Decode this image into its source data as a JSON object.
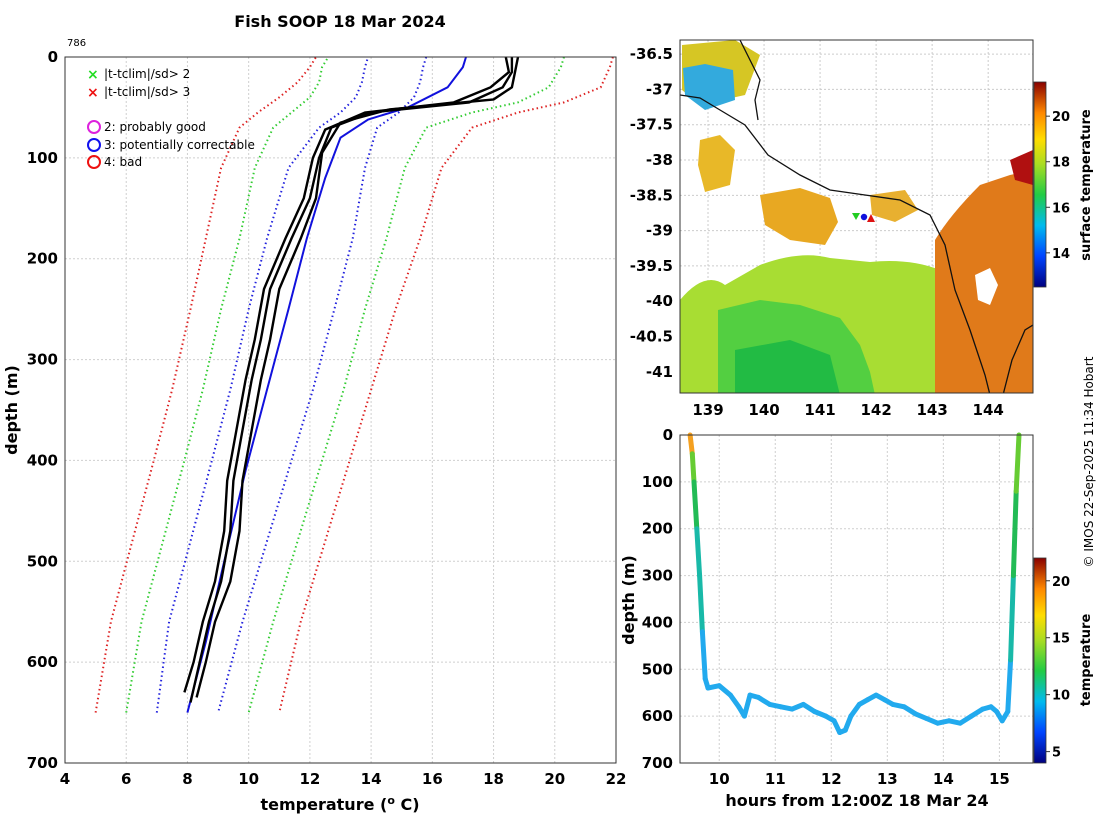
{
  "page": {
    "id_label": "786",
    "credit": "© IMOS 22-Sep-2025 11:34 Hobart"
  },
  "chart_data": [
    {
      "type": "line",
      "name": "profile",
      "title": "Fish SOOP 18 Mar 2024",
      "xlabel": "temperature (",
      "xlabel_sup": "o",
      "xlabel_tail": " C)",
      "ylabel": "depth (m)",
      "xlim": [
        4,
        22
      ],
      "ylim": [
        0,
        700
      ],
      "xticks": [
        4,
        6,
        8,
        10,
        12,
        14,
        16,
        18,
        20,
        22
      ],
      "yticks": [
        0,
        100,
        200,
        300,
        400,
        500,
        600,
        700
      ],
      "grid": true,
      "legend": {
        "position": "top-left",
        "flags": [
          {
            "label": "|t-tclim|/sd> 2",
            "color": "#22dd22",
            "marker": "x"
          },
          {
            "label": "|t-tclim|/sd> 3",
            "color": "#ee1111",
            "marker": "x"
          }
        ],
        "qc": [
          {
            "label": "2: probably good",
            "color": "#dd22dd",
            "marker": "o"
          },
          {
            "label": "3: potentially correctable",
            "color": "#1111ee",
            "marker": "o"
          },
          {
            "label": "4: bad",
            "color": "#ee1111",
            "marker": "o"
          }
        ]
      },
      "series": [
        {
          "name": "clim +3sd",
          "color": "#dd2222",
          "style": "dotted",
          "points": [
            [
              21.9,
              0
            ],
            [
              21.8,
              10
            ],
            [
              21.5,
              30
            ],
            [
              20.3,
              45
            ],
            [
              18.8,
              55
            ],
            [
              17.3,
              70
            ],
            [
              16.3,
              110
            ],
            [
              15.6,
              180
            ],
            [
              14.8,
              250
            ],
            [
              14.0,
              330
            ],
            [
              13.3,
              400
            ],
            [
              12.5,
              480
            ],
            [
              11.7,
              560
            ],
            [
              11.0,
              650
            ]
          ]
        },
        {
          "name": "clim +2sd",
          "color": "#33cc33",
          "style": "dotted",
          "points": [
            [
              20.3,
              0
            ],
            [
              20.2,
              10
            ],
            [
              19.8,
              30
            ],
            [
              18.8,
              45
            ],
            [
              17.3,
              55
            ],
            [
              15.8,
              70
            ],
            [
              15.1,
              110
            ],
            [
              14.5,
              180
            ],
            [
              13.8,
              250
            ],
            [
              13.1,
              330
            ],
            [
              12.4,
              400
            ],
            [
              11.6,
              480
            ],
            [
              10.8,
              560
            ],
            [
              10.0,
              650
            ]
          ]
        },
        {
          "name": "clim +1sd",
          "color": "#2222dd",
          "style": "dotted",
          "points": [
            [
              15.8,
              0
            ],
            [
              15.7,
              10
            ],
            [
              15.6,
              25
            ],
            [
              15.4,
              40
            ],
            [
              14.9,
              55
            ],
            [
              14.2,
              70
            ],
            [
              13.8,
              110
            ],
            [
              13.4,
              180
            ],
            [
              12.8,
              250
            ],
            [
              12.1,
              330
            ],
            [
              11.4,
              400
            ],
            [
              10.6,
              480
            ],
            [
              9.8,
              560
            ],
            [
              9.0,
              650
            ]
          ]
        },
        {
          "name": "clim -1sd",
          "color": "#2222dd",
          "style": "dotted",
          "points": [
            [
              7.0,
              650
            ],
            [
              7.4,
              560
            ],
            [
              8.1,
              480
            ],
            [
              8.8,
              400
            ],
            [
              9.4,
              330
            ],
            [
              10.0,
              250
            ],
            [
              10.6,
              180
            ],
            [
              11.3,
              110
            ],
            [
              12.3,
              70
            ],
            [
              13.0,
              55
            ],
            [
              13.5,
              40
            ],
            [
              13.7,
              25
            ],
            [
              13.8,
              10
            ],
            [
              13.9,
              0
            ]
          ]
        },
        {
          "name": "clim -2sd",
          "color": "#33cc33",
          "style": "dotted",
          "points": [
            [
              6.0,
              650
            ],
            [
              6.5,
              560
            ],
            [
              7.2,
              480
            ],
            [
              7.9,
              400
            ],
            [
              8.5,
              330
            ],
            [
              9.1,
              250
            ],
            [
              9.7,
              180
            ],
            [
              10.2,
              110
            ],
            [
              10.8,
              70
            ],
            [
              11.4,
              55
            ],
            [
              12.0,
              40
            ],
            [
              12.3,
              25
            ],
            [
              12.4,
              10
            ],
            [
              12.6,
              0
            ]
          ]
        },
        {
          "name": "clim -3sd",
          "color": "#dd2222",
          "style": "dotted",
          "points": [
            [
              5.0,
              650
            ],
            [
              5.5,
              560
            ],
            [
              6.2,
              480
            ],
            [
              6.9,
              400
            ],
            [
              7.5,
              330
            ],
            [
              8.1,
              250
            ],
            [
              8.6,
              180
            ],
            [
              9.1,
              110
            ],
            [
              9.7,
              70
            ],
            [
              10.3,
              55
            ],
            [
              11.0,
              40
            ],
            [
              11.6,
              25
            ],
            [
              12.0,
              10
            ],
            [
              12.2,
              0
            ]
          ]
        },
        {
          "name": "clim mean",
          "color": "#1111dd",
          "style": "solid",
          "points": [
            [
              17.1,
              0
            ],
            [
              17.0,
              10
            ],
            [
              16.5,
              30
            ],
            [
              15.2,
              50
            ],
            [
              13.9,
              62
            ],
            [
              13.0,
              80
            ],
            [
              12.5,
              120
            ],
            [
              11.9,
              180
            ],
            [
              11.3,
              250
            ],
            [
              10.6,
              330
            ],
            [
              9.9,
              410
            ],
            [
              9.2,
              500
            ],
            [
              8.6,
              580
            ],
            [
              8.0,
              650
            ]
          ]
        },
        {
          "name": "profile 1",
          "color": "#000000",
          "style": "solid",
          "points": [
            [
              18.6,
              0
            ],
            [
              18.6,
              15
            ],
            [
              18.3,
              30
            ],
            [
              17.2,
              45
            ],
            [
              14.0,
              55
            ],
            [
              12.7,
              70
            ],
            [
              12.3,
              100
            ],
            [
              12.0,
              140
            ],
            [
              11.4,
              180
            ],
            [
              10.7,
              230
            ],
            [
              10.4,
              280
            ],
            [
              10.1,
              320
            ],
            [
              9.8,
              370
            ],
            [
              9.5,
              420
            ],
            [
              9.4,
              470
            ],
            [
              9.1,
              520
            ],
            [
              8.7,
              560
            ],
            [
              8.4,
              600
            ],
            [
              8.1,
              640
            ]
          ]
        },
        {
          "name": "profile 2",
          "color": "#000000",
          "style": "solid",
          "points": [
            [
              18.4,
              0
            ],
            [
              18.5,
              15
            ],
            [
              17.9,
              30
            ],
            [
              16.7,
              45
            ],
            [
              13.8,
              55
            ],
            [
              12.5,
              72
            ],
            [
              12.1,
              100
            ],
            [
              11.8,
              140
            ],
            [
              11.2,
              180
            ],
            [
              10.5,
              230
            ],
            [
              10.2,
              280
            ],
            [
              9.9,
              320
            ],
            [
              9.6,
              370
            ],
            [
              9.3,
              420
            ],
            [
              9.2,
              470
            ],
            [
              8.9,
              520
            ],
            [
              8.5,
              560
            ],
            [
              8.2,
              600
            ],
            [
              7.9,
              630
            ]
          ]
        },
        {
          "name": "profile 3",
          "color": "#000000",
          "style": "solid",
          "points": [
            [
              18.8,
              0
            ],
            [
              18.7,
              15
            ],
            [
              18.6,
              30
            ],
            [
              18.0,
              42
            ],
            [
              14.6,
              52
            ],
            [
              13.0,
              65
            ],
            [
              12.4,
              95
            ],
            [
              12.2,
              140
            ],
            [
              11.7,
              180
            ],
            [
              11.0,
              230
            ],
            [
              10.7,
              280
            ],
            [
              10.4,
              320
            ],
            [
              10.1,
              370
            ],
            [
              9.8,
              420
            ],
            [
              9.7,
              470
            ],
            [
              9.4,
              520
            ],
            [
              8.9,
              560
            ],
            [
              8.6,
              600
            ],
            [
              8.3,
              635
            ]
          ]
        }
      ]
    },
    {
      "type": "heatmap",
      "name": "sst-map",
      "xlim": [
        138.5,
        144.8
      ],
      "ylim": [
        -41.3,
        -36.3
      ],
      "xticks": [
        139,
        140,
        141,
        142,
        143,
        144
      ],
      "yticks": [
        -36.5,
        -37,
        -37.5,
        -38,
        -38.5,
        -39,
        -39.5,
        -40,
        -40.5,
        -41
      ],
      "colorbar_label": "surface temperature",
      "colorbar_range": [
        12.5,
        21.5
      ],
      "colorbar_ticks": [
        14,
        16,
        18,
        20
      ],
      "markers": [
        {
          "lon": 141.6,
          "lat": -38.82,
          "color": "#22cc22",
          "symbol": "v"
        },
        {
          "lon": 141.75,
          "lat": -38.85,
          "color": "#1111dd",
          "symbol": "o"
        },
        {
          "lon": 141.9,
          "lat": -38.85,
          "color": "#dd1111",
          "symbol": "^"
        }
      ]
    },
    {
      "type": "scatter",
      "name": "time-depth",
      "xlabel": "hours from 12:00Z 18 Mar 24",
      "ylabel": "depth (m)",
      "xlim": [
        9.3,
        15.6
      ],
      "ylim": [
        0,
        700
      ],
      "xticks": [
        10,
        11,
        12,
        13,
        14,
        15
      ],
      "yticks": [
        0,
        100,
        200,
        300,
        400,
        500,
        600,
        700
      ],
      "colorbar_label": "temperature",
      "colorbar_range": [
        4,
        22
      ],
      "colorbar_ticks": [
        5,
        10,
        15,
        20
      ],
      "track": [
        [
          9.48,
          0
        ],
        [
          9.52,
          40
        ],
        [
          9.55,
          100
        ],
        [
          9.6,
          200
        ],
        [
          9.65,
          300
        ],
        [
          9.7,
          420
        ],
        [
          9.75,
          520
        ],
        [
          9.8,
          540
        ],
        [
          10.0,
          535
        ],
        [
          10.2,
          555
        ],
        [
          10.35,
          580
        ],
        [
          10.45,
          600
        ],
        [
          10.55,
          555
        ],
        [
          10.7,
          560
        ],
        [
          10.9,
          575
        ],
        [
          11.1,
          580
        ],
        [
          11.3,
          585
        ],
        [
          11.5,
          575
        ],
        [
          11.7,
          590
        ],
        [
          11.9,
          600
        ],
        [
          12.05,
          610
        ],
        [
          12.15,
          635
        ],
        [
          12.25,
          630
        ],
        [
          12.35,
          600
        ],
        [
          12.5,
          575
        ],
        [
          12.65,
          565
        ],
        [
          12.8,
          555
        ],
        [
          12.95,
          565
        ],
        [
          13.1,
          575
        ],
        [
          13.3,
          580
        ],
        [
          13.5,
          595
        ],
        [
          13.7,
          605
        ],
        [
          13.9,
          615
        ],
        [
          14.1,
          610
        ],
        [
          14.3,
          615
        ],
        [
          14.5,
          600
        ],
        [
          14.7,
          585
        ],
        [
          14.85,
          580
        ],
        [
          14.95,
          590
        ],
        [
          15.05,
          610
        ],
        [
          15.15,
          590
        ],
        [
          15.2,
          480
        ],
        [
          15.25,
          300
        ],
        [
          15.3,
          120
        ],
        [
          15.35,
          0
        ]
      ]
    }
  ]
}
